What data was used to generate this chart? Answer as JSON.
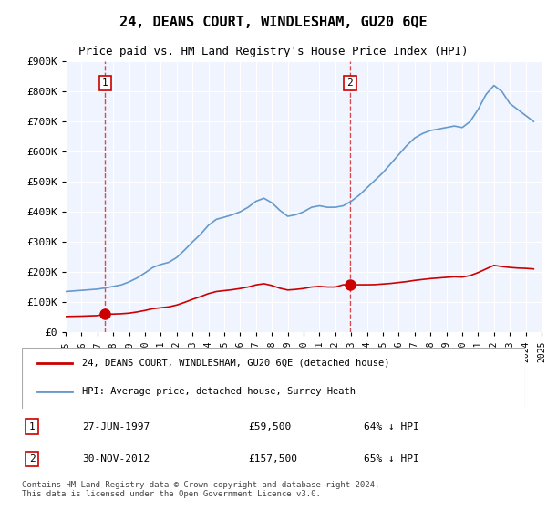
{
  "title": "24, DEANS COURT, WINDLESHAM, GU20 6QE",
  "subtitle": "Price paid vs. HM Land Registry's House Price Index (HPI)",
  "legend_line1": "24, DEANS COURT, WINDLESHAM, GU20 6QE (detached house)",
  "legend_line2": "HPI: Average price, detached house, Surrey Heath",
  "sale1_date": "27-JUN-1997",
  "sale1_price": "£59,500",
  "sale1_hpi": "64% ↓ HPI",
  "sale2_date": "30-NOV-2012",
  "sale2_price": "£157,500",
  "sale2_hpi": "65% ↓ HPI",
  "footnote": "Contains HM Land Registry data © Crown copyright and database right 2024.\nThis data is licensed under the Open Government Licence v3.0.",
  "red_line_color": "#cc0000",
  "blue_line_color": "#6699cc",
  "background_color": "#f0f4ff",
  "plot_bg_color": "#f0f4ff",
  "ylim": [
    0,
    900000
  ],
  "yticks": [
    0,
    100000,
    200000,
    300000,
    400000,
    500000,
    600000,
    700000,
    800000,
    900000
  ],
  "ytick_labels": [
    "£0",
    "£100K",
    "£200K",
    "£300K",
    "£400K",
    "£500K",
    "£600K",
    "£700K",
    "£800K",
    "£900K"
  ],
  "sale1_x": 1997.49,
  "sale1_y": 59500,
  "sale2_x": 2012.92,
  "sale2_y": 157500,
  "hpi_years": [
    1995,
    1995.5,
    1996,
    1996.5,
    1997,
    1997.5,
    1998,
    1998.5,
    1999,
    1999.5,
    2000,
    2000.5,
    2001,
    2001.5,
    2002,
    2002.5,
    2003,
    2003.5,
    2004,
    2004.5,
    2005,
    2005.5,
    2006,
    2006.5,
    2007,
    2007.5,
    2008,
    2008.5,
    2009,
    2009.5,
    2010,
    2010.5,
    2011,
    2011.5,
    2012,
    2012.5,
    2013,
    2013.5,
    2014,
    2014.5,
    2015,
    2015.5,
    2016,
    2016.5,
    2017,
    2017.5,
    2018,
    2018.5,
    2019,
    2019.5,
    2020,
    2020.5,
    2021,
    2021.5,
    2022,
    2022.5,
    2023,
    2023.5,
    2024,
    2024.5
  ],
  "hpi_values": [
    135000,
    137000,
    139000,
    141000,
    143000,
    147000,
    152000,
    157000,
    167000,
    180000,
    197000,
    215000,
    225000,
    232000,
    248000,
    273000,
    300000,
    325000,
    355000,
    375000,
    382000,
    390000,
    400000,
    415000,
    435000,
    445000,
    430000,
    405000,
    385000,
    390000,
    400000,
    415000,
    420000,
    415000,
    415000,
    420000,
    435000,
    455000,
    480000,
    505000,
    530000,
    560000,
    590000,
    620000,
    645000,
    660000,
    670000,
    675000,
    680000,
    685000,
    680000,
    700000,
    740000,
    790000,
    820000,
    800000,
    760000,
    740000,
    720000,
    700000
  ],
  "red_years": [
    1995,
    1995.5,
    1996,
    1996.5,
    1997,
    1997.5,
    1998,
    1998.5,
    1999,
    1999.5,
    2000,
    2000.5,
    2001,
    2001.5,
    2002,
    2002.5,
    2003,
    2003.5,
    2004,
    2004.5,
    2005,
    2005.5,
    2006,
    2006.5,
    2007,
    2007.5,
    2008,
    2008.5,
    2009,
    2009.5,
    2010,
    2010.5,
    2011,
    2011.5,
    2012,
    2012.5,
    2013,
    2013.5,
    2014,
    2014.5,
    2015,
    2015.5,
    2016,
    2016.5,
    2017,
    2017.5,
    2018,
    2018.5,
    2019,
    2019.5,
    2020,
    2020.5,
    2021,
    2021.5,
    2022,
    2022.5,
    2023,
    2023.5,
    2024,
    2024.5
  ],
  "red_values": [
    52000,
    52500,
    53000,
    54000,
    55000,
    59500,
    60000,
    61000,
    63000,
    67000,
    72000,
    78000,
    81000,
    84000,
    90000,
    99000,
    109000,
    118000,
    128000,
    135000,
    138000,
    141000,
    145000,
    150000,
    157000,
    161000,
    155000,
    146000,
    140000,
    142000,
    145000,
    150000,
    152000,
    150000,
    150000,
    157500,
    157500,
    157500,
    157500,
    158000,
    160000,
    162000,
    165000,
    168000,
    172000,
    175000,
    178000,
    180000,
    182000,
    184000,
    183000,
    188000,
    198000,
    210000,
    222000,
    218000,
    215000,
    213000,
    212000,
    210000
  ],
  "xlim_left": 1995,
  "xlim_right": 2025
}
